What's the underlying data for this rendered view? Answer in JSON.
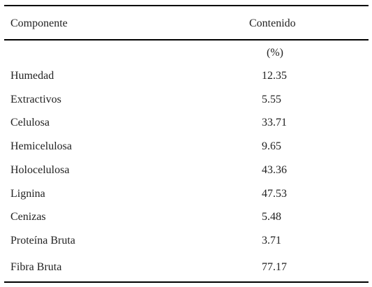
{
  "table": {
    "headers": {
      "component": "Componente",
      "content": "Contenido",
      "unit": "(%)"
    },
    "rows": [
      {
        "component": "Humedad",
        "value": "12.35"
      },
      {
        "component": "Extractivos",
        "value": "5.55"
      },
      {
        "component": "Celulosa",
        "value": "33.71"
      },
      {
        "component": "Hemicelulosa",
        "value": "9.65"
      },
      {
        "component": "Holocelulosa",
        "value": "43.36"
      },
      {
        "component": "Lignina",
        "value": "47.53"
      },
      {
        "component": "Cenizas",
        "value": "5.48"
      },
      {
        "component": "Proteína Bruta",
        "value": "3.71"
      },
      {
        "component": "Fibra Bruta",
        "value": "77.17"
      }
    ]
  }
}
